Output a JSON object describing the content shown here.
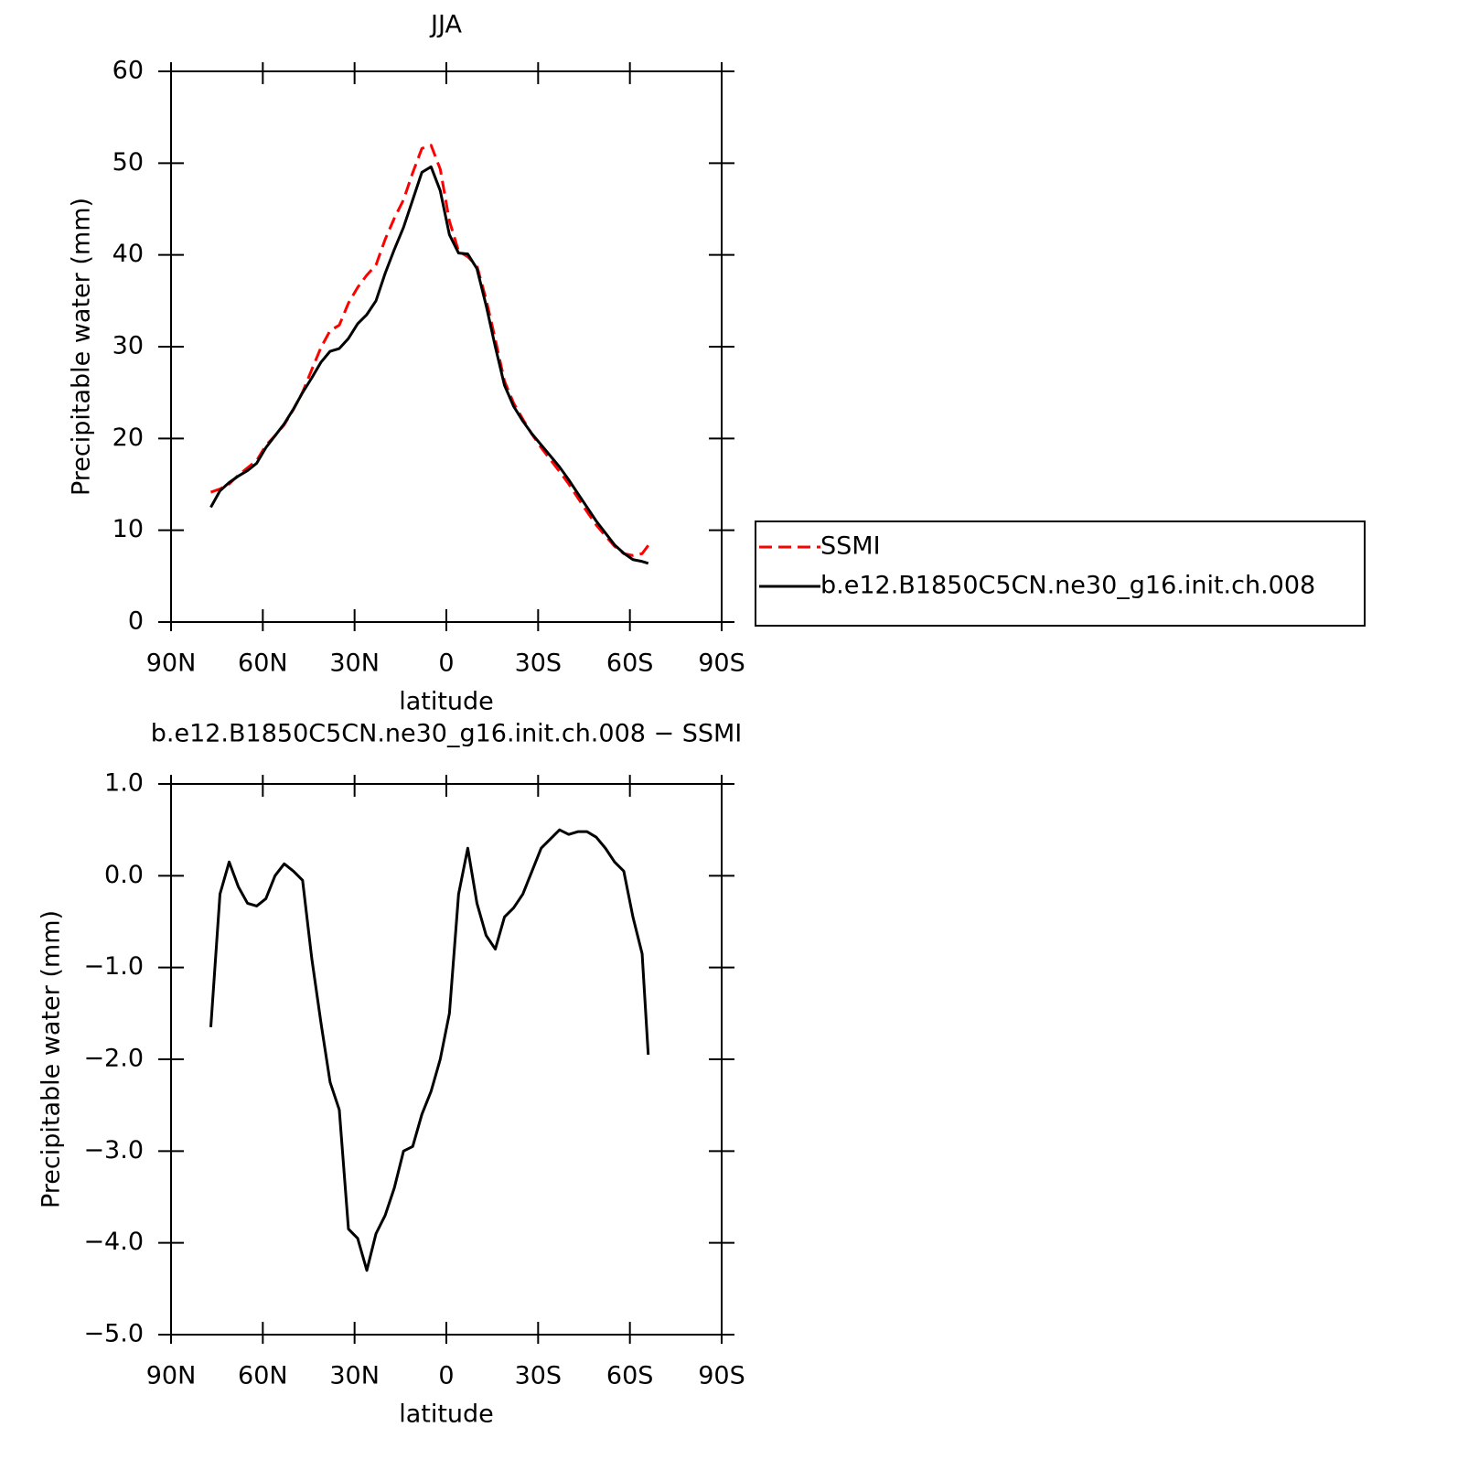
{
  "chart_data": [
    {
      "type": "line",
      "title": "JJA",
      "xlabel": "latitude",
      "ylabel": "Precipitable water (mm)",
      "x": [
        77,
        74,
        71,
        68,
        65,
        62,
        59,
        56,
        53,
        50,
        47,
        44,
        41,
        38,
        35,
        32,
        29,
        26,
        23,
        20,
        17,
        14,
        11,
        8,
        5,
        2,
        -1,
        -4,
        -7,
        -10,
        -13,
        -16,
        -19,
        -22,
        -25,
        -28,
        -31,
        -34,
        -37,
        -40,
        -43,
        -46,
        -49,
        -52,
        -55,
        -58,
        -61,
        -64,
        -66
      ],
      "series": [
        {
          "name": "SSMI",
          "color": "#ff0000",
          "dashed": true,
          "values": [
            14.15,
            14.5,
            15.05,
            16.0,
            16.8,
            17.6,
            19.25,
            20.3,
            21.5,
            23.15,
            25.05,
            27.5,
            29.9,
            31.75,
            32.35,
            34.75,
            36.45,
            37.8,
            38.9,
            41.7,
            44.0,
            46.0,
            48.95,
            51.6,
            51.95,
            49.35,
            43.7,
            40.4,
            39.8,
            38.8,
            35.15,
            30.8,
            26.25,
            23.85,
            22.1,
            20.45,
            19.0,
            17.7,
            16.4,
            15.05,
            13.52,
            12.02,
            10.58,
            9.4,
            8.25,
            7.45,
            7.25,
            7.45,
            8.35
          ]
        },
        {
          "name": "b.e12.B1850C5CN.ne30_g16.init.ch.008",
          "color": "#000000",
          "dashed": false,
          "values": [
            12.5,
            14.3,
            15.2,
            15.9,
            16.5,
            17.3,
            19.0,
            20.3,
            21.6,
            23.2,
            25.0,
            26.6,
            28.3,
            29.5,
            29.8,
            30.9,
            32.5,
            33.5,
            35.0,
            38.0,
            40.6,
            43.0,
            46.0,
            49.0,
            49.6,
            47.0,
            42.2,
            40.2,
            40.1,
            38.5,
            34.5,
            30.0,
            25.8,
            23.5,
            21.9,
            20.5,
            19.3,
            18.1,
            16.9,
            15.5,
            14.0,
            12.5,
            11.0,
            9.7,
            8.4,
            7.5,
            6.8,
            6.6,
            6.4
          ]
        }
      ],
      "xlim": [
        90,
        -90
      ],
      "xticks": [
        {
          "value": 90,
          "label": "90N"
        },
        {
          "value": 60,
          "label": "60N"
        },
        {
          "value": 30,
          "label": "30N"
        },
        0,
        {
          "value": -30,
          "label": "30S"
        },
        {
          "value": -60,
          "label": "60S"
        },
        {
          "value": -90,
          "label": "90S"
        }
      ],
      "ylim": [
        0,
        60
      ],
      "yticks": [
        0,
        10,
        20,
        30,
        40,
        50,
        60
      ],
      "legend": "right"
    },
    {
      "type": "line",
      "title": "b.e12.B1850C5CN.ne30_g16.init.ch.008  −  SSMI",
      "xlabel": "latitude",
      "ylabel": "Precipitable water (mm)",
      "x": [
        77,
        74,
        71,
        68,
        65,
        62,
        59,
        56,
        53,
        50,
        47,
        44,
        41,
        38,
        35,
        32,
        29,
        26,
        23,
        20,
        17,
        14,
        11,
        8,
        5,
        2,
        -1,
        -4,
        -7,
        -10,
        -13,
        -16,
        -19,
        -22,
        -25,
        -28,
        -31,
        -34,
        -37,
        -40,
        -43,
        -46,
        -49,
        -52,
        -55,
        -58,
        -61,
        -64,
        -66
      ],
      "series": [
        {
          "color": "#000000",
          "dashed": false,
          "values": [
            -1.65,
            -0.2,
            0.15,
            -0.12,
            -0.3,
            -0.33,
            -0.25,
            0.0,
            0.13,
            0.05,
            -0.05,
            -0.9,
            -1.6,
            -2.25,
            -2.55,
            -3.85,
            -3.95,
            -4.3,
            -3.9,
            -3.7,
            -3.4,
            -3.0,
            -2.95,
            -2.6,
            -2.35,
            -2.0,
            -1.5,
            -0.2,
            0.3,
            -0.3,
            -0.65,
            -0.8,
            -0.45,
            -0.35,
            -0.2,
            0.05,
            0.3,
            0.4,
            0.5,
            0.45,
            0.48,
            0.48,
            0.42,
            0.3,
            0.15,
            0.05,
            -0.45,
            -0.85,
            -1.95
          ]
        }
      ],
      "xlim": [
        90,
        -90
      ],
      "xticks": [
        {
          "value": 90,
          "label": "90N"
        },
        {
          "value": 60,
          "label": "60N"
        },
        {
          "value": 30,
          "label": "30N"
        },
        0,
        {
          "value": -30,
          "label": "30S"
        },
        {
          "value": -60,
          "label": "60S"
        },
        {
          "value": -90,
          "label": "90S"
        }
      ],
      "ylim": [
        -5,
        1
      ],
      "yticks": [
        {
          "value": -5,
          "label": "−5.0"
        },
        {
          "value": -4,
          "label": "−4.0"
        },
        {
          "value": -3,
          "label": "−3.0"
        },
        {
          "value": -2,
          "label": "−2.0"
        },
        {
          "value": -1,
          "label": "−1.0"
        },
        {
          "value": 0,
          "label": "0.0"
        },
        {
          "value": 1,
          "label": "1.0"
        }
      ]
    }
  ]
}
